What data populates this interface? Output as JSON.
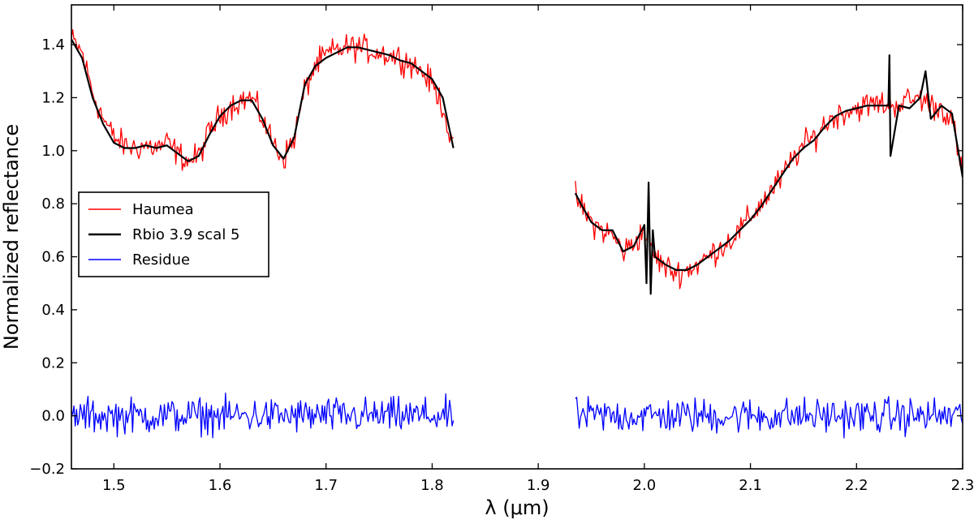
{
  "chart_data": {
    "type": "line",
    "xlabel": "λ (μm)",
    "ylabel": "Normalized reflectance",
    "xlim": [
      1.46,
      2.3
    ],
    "ylim": [
      -0.2,
      1.55
    ],
    "xticks": [
      "1.5",
      "1.6",
      "1.7",
      "1.8",
      "1.9",
      "2.0",
      "2.1",
      "2.2",
      "2.3"
    ],
    "yticks": [
      "−0.2",
      "0.0",
      "0.2",
      "0.4",
      "0.6",
      "0.8",
      "1.0",
      "1.2",
      "1.4"
    ],
    "grid": false,
    "legend_position": "center-left",
    "series": [
      {
        "name": "Haumea",
        "color": "#ff0000",
        "style": "noisy",
        "noise": 0.045,
        "segments": [
          {
            "x": [
              1.46,
              1.47,
              1.48,
              1.49,
              1.5,
              1.51,
              1.52,
              1.53,
              1.54,
              1.55,
              1.56,
              1.57,
              1.58,
              1.59,
              1.6,
              1.61,
              1.62,
              1.63,
              1.64,
              1.65,
              1.66,
              1.67,
              1.68,
              1.69,
              1.7,
              1.71,
              1.72,
              1.73,
              1.74,
              1.75,
              1.76,
              1.77,
              1.78,
              1.79,
              1.8,
              1.81,
              1.82
            ],
            "y": [
              1.42,
              1.37,
              1.22,
              1.12,
              1.05,
              1.02,
              1.01,
              1.02,
              1.01,
              1.03,
              0.99,
              0.96,
              0.98,
              1.07,
              1.13,
              1.17,
              1.19,
              1.2,
              1.12,
              1.03,
              0.97,
              1.05,
              1.23,
              1.32,
              1.36,
              1.38,
              1.39,
              1.39,
              1.38,
              1.37,
              1.36,
              1.35,
              1.33,
              1.3,
              1.25,
              1.17,
              1.0
            ]
          },
          {
            "x": [
              1.935,
              1.94,
              1.95,
              1.96,
              1.97,
              1.98,
              1.99,
              2.0,
              2.01,
              2.02,
              2.03,
              2.04,
              2.05,
              2.06,
              2.07,
              2.08,
              2.09,
              2.1,
              2.11,
              2.12,
              2.13,
              2.14,
              2.15,
              2.16,
              2.17,
              2.18,
              2.19,
              2.2,
              2.21,
              2.22,
              2.23,
              2.24,
              2.25,
              2.26,
              2.27,
              2.28,
              2.29,
              2.3
            ],
            "y": [
              0.84,
              0.79,
              0.73,
              0.7,
              0.68,
              0.62,
              0.65,
              0.7,
              0.6,
              0.56,
              0.54,
              0.55,
              0.57,
              0.6,
              0.63,
              0.66,
              0.7,
              0.75,
              0.8,
              0.85,
              0.9,
              0.97,
              1.02,
              1.05,
              1.1,
              1.13,
              1.15,
              1.16,
              1.17,
              1.18,
              1.17,
              1.18,
              1.19,
              1.2,
              1.17,
              1.16,
              1.12,
              0.9
            ]
          }
        ]
      },
      {
        "name": "Rbio 3.9 scal 5",
        "color": "#000000",
        "style": "smooth",
        "segments": [
          {
            "x": [
              1.46,
              1.47,
              1.48,
              1.49,
              1.5,
              1.51,
              1.52,
              1.53,
              1.54,
              1.55,
              1.56,
              1.57,
              1.58,
              1.59,
              1.6,
              1.61,
              1.62,
              1.63,
              1.64,
              1.65,
              1.66,
              1.67,
              1.68,
              1.69,
              1.7,
              1.71,
              1.72,
              1.73,
              1.74,
              1.75,
              1.76,
              1.77,
              1.78,
              1.79,
              1.8,
              1.81,
              1.82
            ],
            "y": [
              1.42,
              1.35,
              1.2,
              1.1,
              1.03,
              1.01,
              1.01,
              1.02,
              1.01,
              1.02,
              0.99,
              0.96,
              0.98,
              1.06,
              1.13,
              1.17,
              1.19,
              1.19,
              1.12,
              1.02,
              0.97,
              1.05,
              1.25,
              1.32,
              1.35,
              1.37,
              1.39,
              1.39,
              1.38,
              1.37,
              1.36,
              1.34,
              1.33,
              1.3,
              1.27,
              1.2,
              1.01
            ]
          },
          {
            "x": [
              1.935,
              1.94,
              1.95,
              1.96,
              1.97,
              1.98,
              1.99,
              2.0,
              2.002,
              2.004,
              2.006,
              2.008,
              2.01,
              2.02,
              2.03,
              2.04,
              2.05,
              2.06,
              2.07,
              2.08,
              2.09,
              2.1,
              2.11,
              2.12,
              2.13,
              2.14,
              2.15,
              2.16,
              2.17,
              2.18,
              2.19,
              2.2,
              2.21,
              2.22,
              2.23,
              2.231,
              2.232,
              2.24,
              2.25,
              2.26,
              2.265,
              2.27,
              2.28,
              2.29,
              2.3
            ],
            "y": [
              0.84,
              0.8,
              0.73,
              0.7,
              0.7,
              0.62,
              0.64,
              0.72,
              0.5,
              0.88,
              0.46,
              0.7,
              0.6,
              0.57,
              0.55,
              0.55,
              0.57,
              0.6,
              0.63,
              0.66,
              0.7,
              0.74,
              0.79,
              0.85,
              0.91,
              0.97,
              1.01,
              1.04,
              1.09,
              1.13,
              1.15,
              1.16,
              1.17,
              1.17,
              1.17,
              1.36,
              0.98,
              1.17,
              1.16,
              1.2,
              1.3,
              1.12,
              1.17,
              1.14,
              0.9
            ]
          }
        ]
      },
      {
        "name": "Residue",
        "color": "#0000ff",
        "style": "noisy",
        "noise": 0.06,
        "segments": [
          {
            "x": [
              1.46,
              1.82
            ],
            "y": [
              0.0,
              0.0
            ]
          },
          {
            "x": [
              1.935,
              2.3
            ],
            "y": [
              0.0,
              0.0
            ]
          }
        ]
      }
    ]
  }
}
